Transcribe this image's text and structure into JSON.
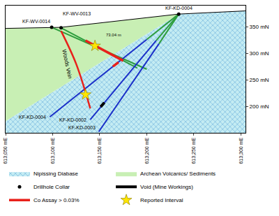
{
  "chart_data": {
    "type": "cross_section",
    "xlim": [
      613050,
      613305
    ],
    "xticks": [
      {
        "value": 613050,
        "label": "613,050 mE"
      },
      {
        "value": 613100,
        "label": "613,100 mE"
      },
      {
        "value": 613150,
        "label": "613,150 mE"
      },
      {
        "value": 613200,
        "label": "613,200 mE"
      },
      {
        "value": 613250,
        "label": "613,250 mE"
      },
      {
        "value": 613300,
        "label": "613,300 mE"
      }
    ],
    "ylim": [
      150,
      390
    ],
    "yticks": [
      {
        "value": 200,
        "label": "200 mN"
      },
      {
        "value": 250,
        "label": "250 mN"
      },
      {
        "value": 300,
        "label": "300 mN"
      },
      {
        "value": 350,
        "label": "350 mN"
      }
    ],
    "topography": {
      "x": [
        613050,
        613099,
        613109,
        613234,
        613305
      ],
      "y": [
        347,
        349,
        349,
        374,
        380
      ]
    },
    "contact": {
      "x": [
        613050,
        613234
      ],
      "y": [
        172,
        374
      ]
    },
    "diabase": {
      "name": "Nipissing Diabase",
      "color": "#c4ecf3",
      "pattern_color": "#3b8fd0"
    },
    "volcanics": {
      "name": "Archean Volcanics/ Sediments",
      "color": "#c8efb4"
    },
    "collars": {
      "name": "Drillhole Collar",
      "color": "#000000",
      "marker": "circle",
      "x": [
        613099,
        613109,
        613234
      ],
      "y": [
        349,
        348,
        374
      ],
      "labels": [
        "KF-WV-0014",
        "KF-WV-0013",
        "KF-KD-0004"
      ]
    },
    "drillholes": [
      {
        "segments": [
          {
            "color": "#2e9e3e",
            "x": [
              613099,
              613200
            ],
            "y": [
              349,
              270
            ]
          }
        ]
      },
      {
        "segments": [
          {
            "color": "#2e9e3e",
            "x": [
              613109,
              613190
            ],
            "y": [
              348,
              272
            ]
          }
        ]
      },
      {
        "name": "KF-KD-0004",
        "segments": [
          {
            "color": "#2e9e3e",
            "x": [
              613234,
              613200
            ],
            "y": [
              374,
              326
            ]
          },
          {
            "color": "#1a2fc9",
            "x": [
              613200,
              613097
            ],
            "y": [
              326,
              180
            ]
          }
        ]
      },
      {
        "name": "KF-KD-0002",
        "segments": [
          {
            "color": "#2e9e3e",
            "x": [
              613234,
              613210
            ],
            "y": [
              374,
              324
            ]
          },
          {
            "color": "#1a2fc9",
            "x": [
              613210,
              613140
            ],
            "y": [
              324,
              175
            ]
          }
        ]
      },
      {
        "name": "KF-KD-0003",
        "segments": [
          {
            "color": "#2e9e3e",
            "x": [
              613234,
              613213
            ],
            "y": [
              374,
              318
            ]
          },
          {
            "color": "#1a2fc9",
            "x": [
              613213,
              613149
            ],
            "y": [
              318,
              152
            ]
          }
        ]
      }
    ],
    "woods_vein": {
      "label": "Woods Vein",
      "color": "#e8211b",
      "x": [
        613109,
        613125,
        613140
      ],
      "y": [
        342,
        280,
        196
      ]
    },
    "co_assay": {
      "name": "Co Assay > 0.03%",
      "color": "#e8211b",
      "segments": [
        {
          "x": [
            613135,
            613175
          ],
          "y": [
            324,
            286
          ]
        },
        {
          "x": [
            613170,
            613164
          ],
          "y": [
            283,
            275
          ]
        }
      ]
    },
    "void": {
      "name": "Void (Mine Workings)",
      "color": "#000000",
      "x": [
        613155,
        613151
      ],
      "y": [
        207,
        199
      ]
    },
    "reported_intervals": {
      "name": "Reported Interval",
      "color": "#ffe600",
      "marker": "star",
      "x": [
        613145,
        613135
      ],
      "y": [
        314,
        222
      ]
    },
    "note": {
      "text": "73.04 m",
      "x": 613165,
      "y": 335
    }
  }
}
